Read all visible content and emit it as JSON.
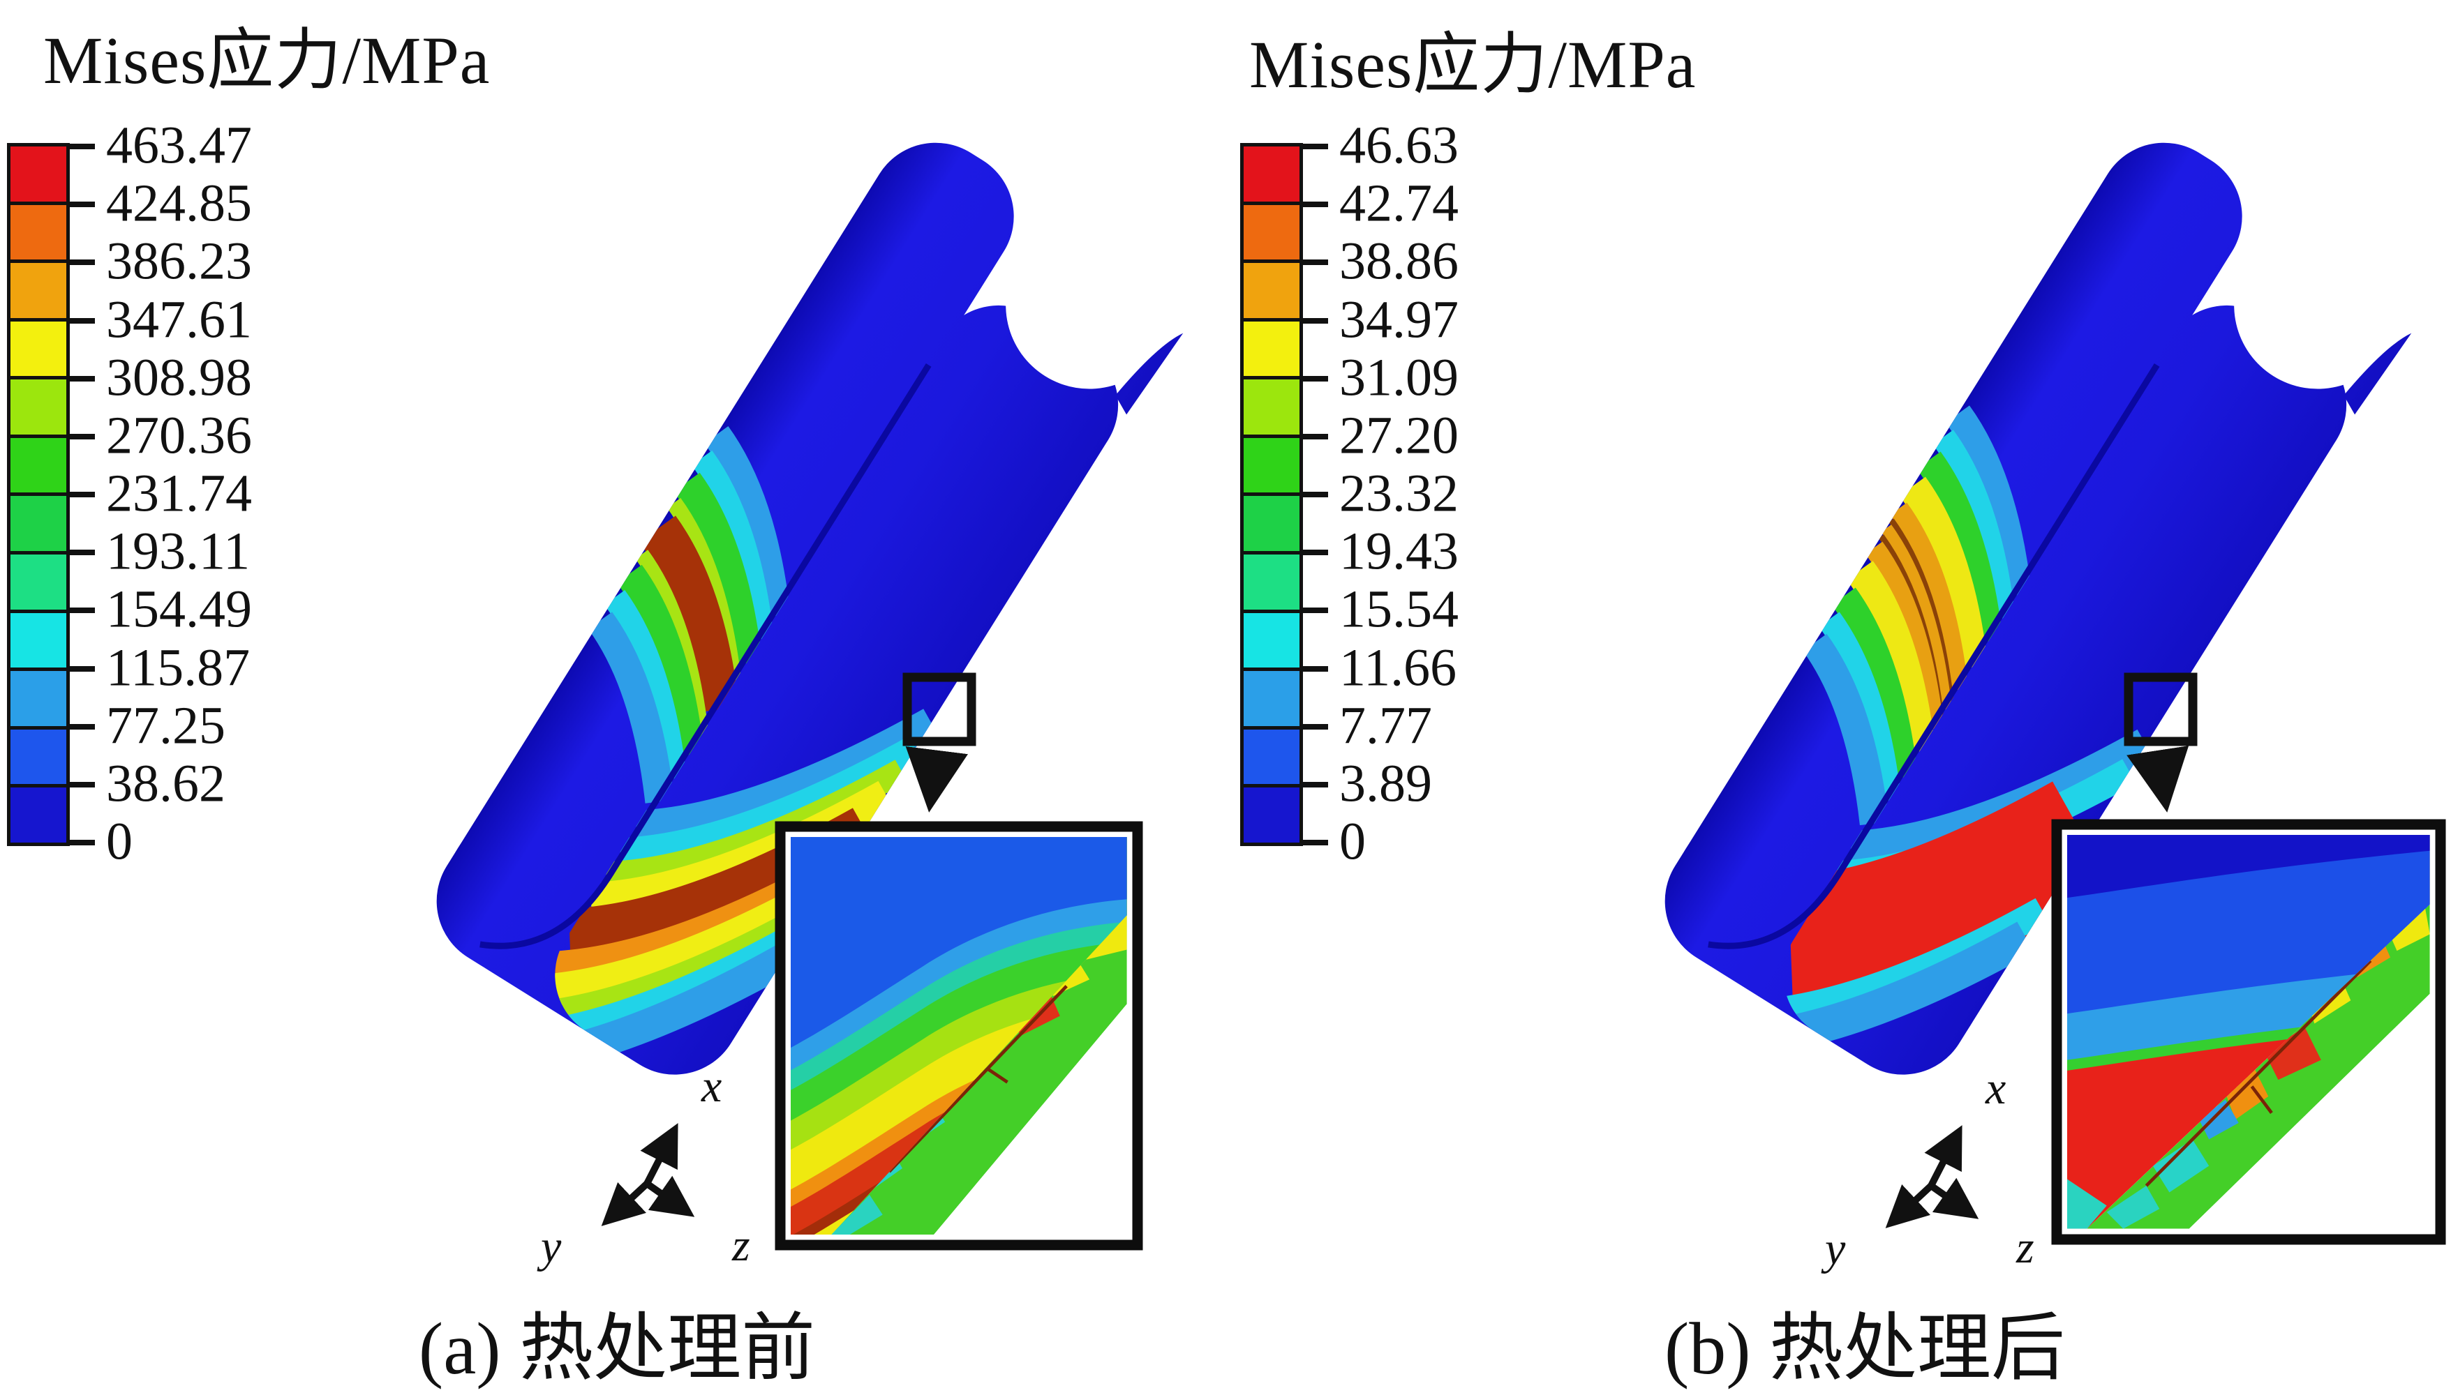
{
  "figure": {
    "panels": [
      {
        "id": "a",
        "legend_title": "Mises应力/MPa",
        "caption": "(a) 热处理前",
        "legend_ticks": [
          "463.47",
          "424.85",
          "386.23",
          "347.61",
          "308.98",
          "270.36",
          "231.74",
          "193.11",
          "154.49",
          "115.87",
          "77.25",
          "38.62",
          "0"
        ],
        "axis_labels": {
          "x": "x",
          "y": "y",
          "z": "z"
        }
      },
      {
        "id": "b",
        "legend_title": "Mises应力/MPa",
        "caption": "(b) 热处理后",
        "legend_ticks": [
          "46.63",
          "42.74",
          "38.86",
          "34.97",
          "31.09",
          "27.20",
          "23.32",
          "19.43",
          "15.54",
          "11.66",
          "7.77",
          "3.89",
          "0"
        ],
        "axis_labels": {
          "x": "x",
          "y": "y",
          "z": "z"
        }
      }
    ],
    "legend_colors": [
      "#e3131b",
      "#ee6a10",
      "#f0a30e",
      "#f3f00e",
      "#9ce60d",
      "#2fd318",
      "#1ed147",
      "#1ddf84",
      "#17e4e4",
      "#2b9fe8",
      "#1e56ed",
      "#1616cf"
    ]
  },
  "colors": {
    "page_bg": "#ffffff",
    "ink": "#111111",
    "pipe_main": "#1b18dd",
    "pipe_dark": "#0d0ab2",
    "pipe_mid": "#1d1ae4",
    "pipe_deep": "#130fc4",
    "crease": "#0a08a0",
    "band_a_inner": [
      "#2e9ee8",
      "#21d3e8",
      "#2ed12b",
      "#a8e414",
      "#a63208",
      "#a8e414",
      "#2ed12b",
      "#21d3e8",
      "#2e9ee8"
    ],
    "band_a_outer": [
      "#2e9ee8",
      "#21d3e8",
      "#a8e414",
      "#f0ee14",
      "#a63208",
      "#ef9112",
      "#f0ee14",
      "#a8e414",
      "#21d3e8",
      "#2e9ee8"
    ],
    "band_b_inner": [
      "#2e9ee8",
      "#21d3e8",
      "#2ed12b",
      "#eee814",
      "#e8a012",
      "#8a4208",
      "#e8a012",
      "#8a4208",
      "#e8a012",
      "#eee814",
      "#2ed12b",
      "#21d3e8",
      "#2e9ee8"
    ],
    "band_b_outer": [
      "#2e9ee8",
      "#21d3e8",
      "#e8221a",
      "#21d3e8",
      "#2e9ee8"
    ],
    "sweep_a": [
      "#2ad3c0",
      "#efe90f",
      "#a32d0a",
      "#d93413",
      "#f09010",
      "#efe90f",
      "#a6e112",
      "#3bd12b",
      "#25cfa6",
      "#2f9fe8",
      "#1b5ae8"
    ],
    "sweep_b": [
      "#e8221a",
      "#35cf30",
      "#2f9fe8",
      "#1c50e8",
      "#1313c8"
    ],
    "i_green": "#44cf28",
    "i_red": "#e0301a",
    "i_cyan": "#28d3c8",
    "i_teal": "#2ad3c0",
    "i_orange": "#f09010",
    "i_yellow": "#efe90f",
    "i_skyblue": "#2f9fe8",
    "i_crack": "#7a2408"
  },
  "chart_data": [
    {
      "type": "heatmap",
      "title": "Mises应力/MPa",
      "panel_caption": "(a) 热处理前",
      "quantity": "von Mises stress",
      "unit": "MPa",
      "scale_min": 0,
      "scale_max": 463.47,
      "scale_ticks": [
        463.47,
        424.85,
        386.23,
        347.61,
        308.98,
        270.36,
        231.74,
        193.11,
        154.49,
        115.87,
        77.25,
        38.62,
        0
      ],
      "legend_position": "left",
      "annotations": [
        "zoom-detail inset of weld zone",
        "xyz axis triad"
      ]
    },
    {
      "type": "heatmap",
      "title": "Mises应力/MPa",
      "panel_caption": "(b) 热处理后",
      "quantity": "von Mises stress",
      "unit": "MPa",
      "scale_min": 0,
      "scale_max": 46.63,
      "scale_ticks": [
        46.63,
        42.74,
        38.86,
        34.97,
        31.09,
        27.2,
        23.32,
        19.43,
        15.54,
        11.66,
        7.77,
        3.89,
        0
      ],
      "legend_position": "left",
      "annotations": [
        "zoom-detail inset of weld zone",
        "xyz axis triad"
      ]
    }
  ]
}
